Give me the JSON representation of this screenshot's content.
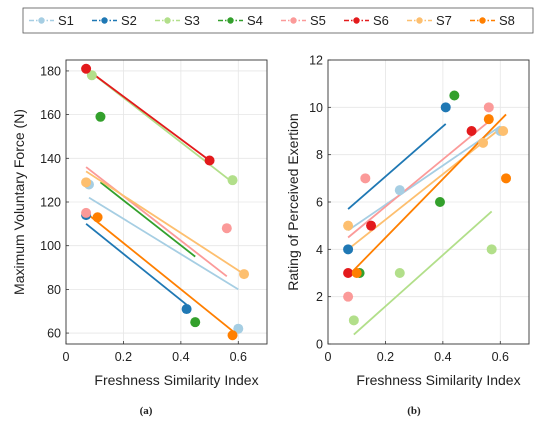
{
  "legend": {
    "placement": "top",
    "entries": [
      {
        "name": "S1",
        "color": "#a6cee3"
      },
      {
        "name": "S2",
        "color": "#1f78b4"
      },
      {
        "name": "S3",
        "color": "#b2df8a"
      },
      {
        "name": "S4",
        "color": "#33a02c"
      },
      {
        "name": "S5",
        "color": "#fb9a99"
      },
      {
        "name": "S6",
        "color": "#e31a1c"
      },
      {
        "name": "S7",
        "color": "#fdbf6f"
      },
      {
        "name": "S8",
        "color": "#ff7f00"
      }
    ]
  },
  "chart_data": [
    {
      "type": "scatter",
      "panel_label": "(a)",
      "xlabel": "Freshness Similarity Index",
      "ylabel": "Maximum Voluntary Force (N)",
      "xlim": [
        0,
        0.7
      ],
      "ylim": [
        55,
        185
      ],
      "xticks": [
        0,
        0.2,
        0.4,
        0.6
      ],
      "xtick_labels": [
        "0",
        "0.2",
        "0.4",
        "0.6"
      ],
      "yticks": [
        60,
        80,
        100,
        120,
        140,
        160,
        180
      ],
      "yticks_labels": [
        "60",
        "80",
        "100",
        "120",
        "140",
        "160",
        "180"
      ],
      "grid": true,
      "series": [
        {
          "name": "S1",
          "color": "#a6cee3",
          "points": [
            [
              0.08,
              128
            ],
            [
              0.6,
              62
            ]
          ],
          "fit": [
            [
              0.08,
              122
            ],
            [
              0.6,
              80
            ]
          ]
        },
        {
          "name": "S2",
          "color": "#1f78b4",
          "points": [
            [
              0.07,
              114
            ],
            [
              0.42,
              71
            ]
          ],
          "fit": [
            [
              0.07,
              110
            ],
            [
              0.42,
              73
            ]
          ]
        },
        {
          "name": "S3",
          "color": "#b2df8a",
          "points": [
            [
              0.09,
              178
            ],
            [
              0.58,
              130
            ]
          ],
          "fit": [
            [
              0.09,
              179
            ],
            [
              0.58,
              129
            ]
          ]
        },
        {
          "name": "S4",
          "color": "#33a02c",
          "points": [
            [
              0.12,
              159
            ],
            [
              0.45,
              65
            ]
          ],
          "fit": [
            [
              0.12,
              129
            ],
            [
              0.45,
              95
            ]
          ]
        },
        {
          "name": "S5",
          "color": "#fb9a99",
          "points": [
            [
              0.07,
              115
            ],
            [
              0.56,
              108
            ]
          ],
          "fit": [
            [
              0.07,
              136
            ],
            [
              0.56,
              86
            ]
          ]
        },
        {
          "name": "S6",
          "color": "#e31a1c",
          "points": [
            [
              0.07,
              181
            ],
            [
              0.5,
              139
            ]
          ],
          "fit": [
            [
              0.07,
              181
            ],
            [
              0.5,
              139
            ]
          ]
        },
        {
          "name": "S7",
          "color": "#fdbf6f",
          "points": [
            [
              0.07,
              129
            ],
            [
              0.62,
              87
            ]
          ],
          "fit": [
            [
              0.07,
              134
            ],
            [
              0.62,
              87
            ]
          ]
        },
        {
          "name": "S8",
          "color": "#ff7f00",
          "points": [
            [
              0.11,
              113
            ],
            [
              0.58,
              59
            ]
          ],
          "fit": [
            [
              0.07,
              115
            ],
            [
              0.58,
              61
            ]
          ]
        }
      ]
    },
    {
      "type": "scatter",
      "panel_label": "(b)",
      "xlabel": "Freshness Similarity Index",
      "ylabel": "Rating of Perceived Exertion",
      "xlim": [
        0,
        0.7
      ],
      "ylim": [
        0,
        12
      ],
      "xticks": [
        0,
        0.2,
        0.4,
        0.6
      ],
      "xtick_labels": [
        "0",
        "0.2",
        "0.4",
        "0.6"
      ],
      "yticks": [
        0,
        2,
        4,
        6,
        8,
        10,
        12
      ],
      "yticks_labels": [
        "0",
        "2",
        "4",
        "6",
        "8",
        "10",
        "12"
      ],
      "grid": true,
      "series": [
        {
          "name": "S1",
          "color": "#a6cee3",
          "points": [
            [
              0.25,
              6.5
            ],
            [
              0.6,
              9
            ]
          ],
          "fit": [
            [
              0.07,
              4.8
            ],
            [
              0.6,
              9.2
            ]
          ]
        },
        {
          "name": "S2",
          "color": "#1f78b4",
          "points": [
            [
              0.07,
              4
            ],
            [
              0.41,
              10
            ]
          ],
          "fit": [
            [
              0.07,
              5.7
            ],
            [
              0.41,
              9.3
            ]
          ]
        },
        {
          "name": "S3",
          "color": "#b2df8a",
          "points": [
            [
              0.09,
              1
            ],
            [
              0.25,
              3
            ],
            [
              0.57,
              4
            ]
          ],
          "fit": [
            [
              0.09,
              0.4
            ],
            [
              0.57,
              5.6
            ]
          ]
        },
        {
          "name": "S4",
          "color": "#33a02c",
          "points": [
            [
              0.11,
              3
            ],
            [
              0.39,
              6
            ],
            [
              0.44,
              10.5
            ]
          ],
          "fit": []
        },
        {
          "name": "S5",
          "color": "#fb9a99",
          "points": [
            [
              0.07,
              2
            ],
            [
              0.13,
              7
            ],
            [
              0.56,
              10
            ]
          ],
          "fit": [
            [
              0.07,
              4.5
            ],
            [
              0.56,
              9.4
            ]
          ]
        },
        {
          "name": "S6",
          "color": "#e31a1c",
          "points": [
            [
              0.07,
              3
            ],
            [
              0.15,
              5
            ],
            [
              0.5,
              9
            ]
          ],
          "fit": []
        },
        {
          "name": "S7",
          "color": "#fdbf6f",
          "points": [
            [
              0.07,
              5
            ],
            [
              0.54,
              8.5
            ],
            [
              0.61,
              9
            ]
          ],
          "fit": [
            [
              0.07,
              4
            ],
            [
              0.6,
              9.1
            ]
          ]
        },
        {
          "name": "S8",
          "color": "#ff7f00",
          "points": [
            [
              0.1,
              3
            ],
            [
              0.56,
              9.5
            ],
            [
              0.62,
              7
            ]
          ],
          "fit": [
            [
              0.08,
              3
            ],
            [
              0.62,
              9.7
            ]
          ]
        }
      ]
    }
  ]
}
